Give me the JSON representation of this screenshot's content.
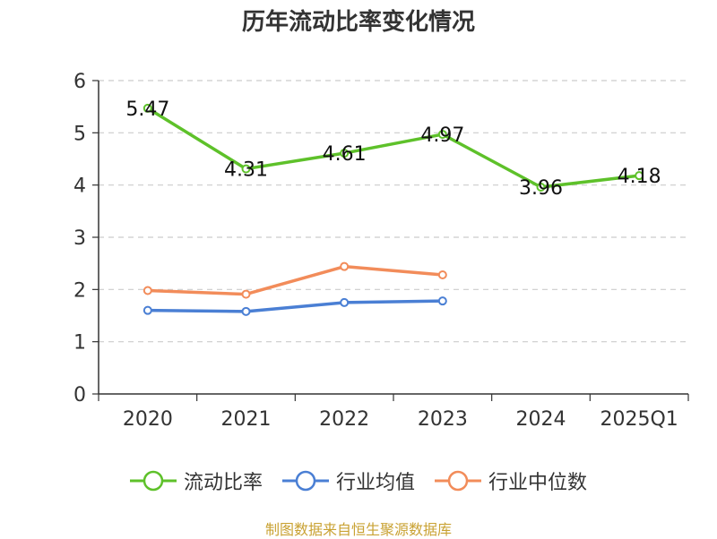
{
  "chart_data": {
    "type": "line",
    "title": "历年流动比率变化情况",
    "categories": [
      "2020",
      "2021",
      "2022",
      "2023",
      "2024",
      "2025Q1"
    ],
    "ylim": [
      0,
      6
    ],
    "yticks": [
      0,
      1,
      2,
      3,
      4,
      5,
      6
    ],
    "grid": true,
    "legend_position": "bottom",
    "series": [
      {
        "name": "流动比率",
        "color": "#5ec12a",
        "values": [
          5.47,
          4.31,
          4.61,
          4.97,
          3.96,
          4.18
        ],
        "labels": [
          "5.47",
          "4.31",
          "4.61",
          "4.97",
          "3.96",
          "4.18"
        ]
      },
      {
        "name": "行业均值",
        "color": "#4a7fd4",
        "values": [
          1.6,
          1.58,
          1.75,
          1.78,
          null,
          null
        ]
      },
      {
        "name": "行业中位数",
        "color": "#f28c5a",
        "values": [
          1.98,
          1.91,
          2.44,
          2.28,
          null,
          null
        ]
      }
    ]
  },
  "legend": {
    "items": [
      "流动比率",
      "行业均值",
      "行业中位数"
    ]
  },
  "source": "制图数据来自恒生聚源数据库"
}
